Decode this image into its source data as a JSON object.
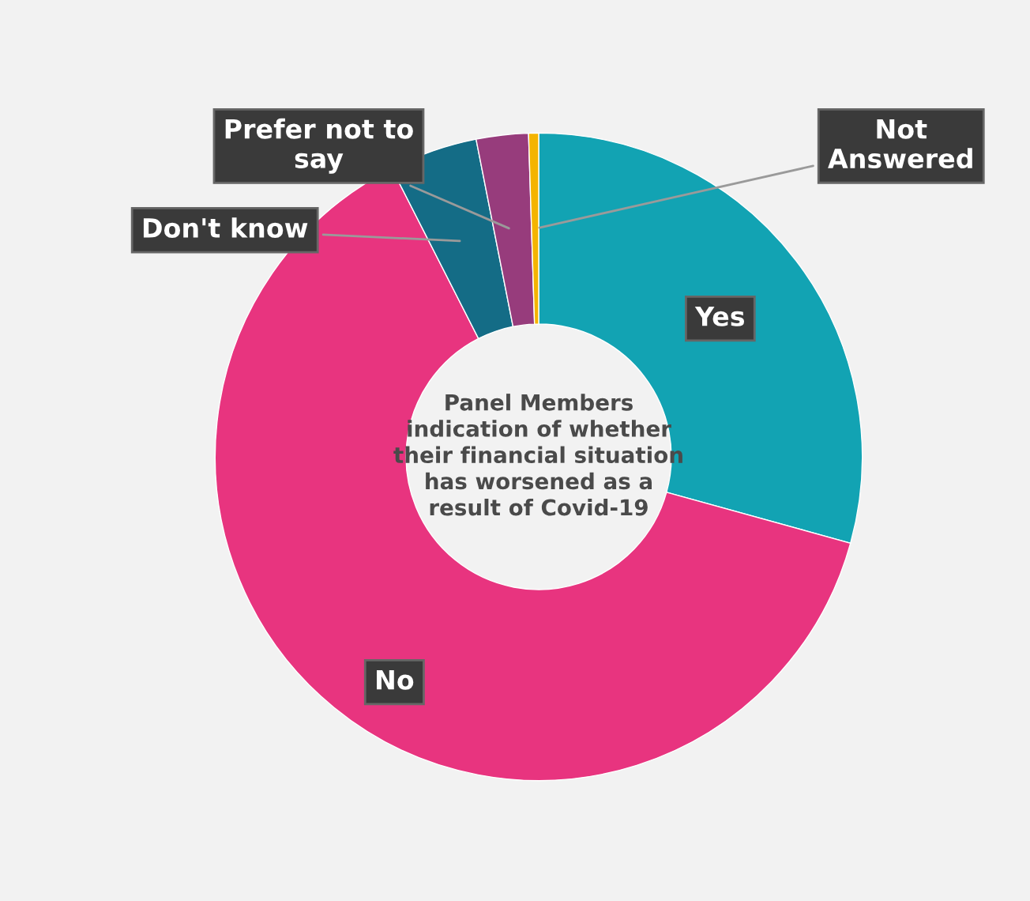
{
  "chart_data": {
    "type": "donut",
    "title": "Panel Members\nindication of whether\ntheir financial situation\nhas worsened as a\nresult of Covid-19",
    "categories": [
      "Yes",
      "No",
      "Don't know",
      "Prefer not to\nsay",
      "Not\nAnswered"
    ],
    "values": [
      29.3,
      63.2,
      4.4,
      2.6,
      0.5
    ],
    "colors": [
      "#12a3b3",
      "#e8347f",
      "#146c86",
      "#973c7c",
      "#f4b400"
    ],
    "legend": false
  }
}
